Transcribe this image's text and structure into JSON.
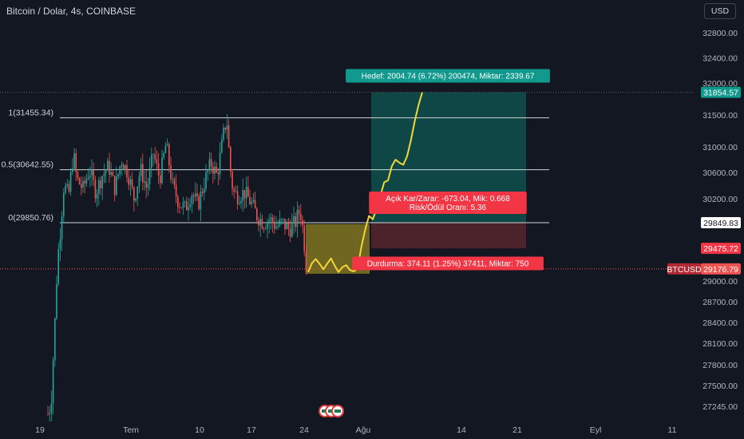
{
  "header": {
    "title": "Bitcoin / Dolar, 4s, COINBASE",
    "currency": "USD"
  },
  "colors": {
    "bg": "#131722",
    "up": "#26a69a",
    "down": "#ef5350",
    "profit_zone": "#0e5852",
    "loss_zone": "#53242c",
    "yellow_zone": "#736a22",
    "projection": "#f2d63a",
    "target_label": "#11998e",
    "risk_label": "#f23645"
  },
  "chart_data": {
    "type": "candlestick",
    "symbol": "BTCUSD",
    "ylim": [
      27150,
      33050
    ],
    "y_ticks": [
      32800,
      32400,
      32000,
      31500,
      31000,
      30600,
      30200,
      29000,
      28700,
      28400,
      28100,
      27800,
      27500,
      27245
    ],
    "y_tick_labels": [
      "32800.00",
      "32400.00",
      "32000.00",
      "31500.00",
      "31000.00",
      "30600.00",
      "30200.00",
      "29000.00",
      "28700.00",
      "28400.00",
      "28100.00",
      "27800.00",
      "27500.00",
      "27245.00"
    ],
    "x_ticks": [
      "19",
      "Tem",
      "10",
      "17",
      "24",
      "Ağu",
      "14",
      "21",
      "Eyl",
      "11"
    ],
    "price_badges": [
      {
        "value": "31854.57",
        "kind": "target"
      },
      {
        "value": "29849.83",
        "kind": "entry"
      },
      {
        "value": "29475.72",
        "kind": "stop"
      },
      {
        "value": "29176.79",
        "kind": "last"
      }
    ],
    "last_symbol_badge": "BTCUSD",
    "fib_levels": [
      {
        "label": "1(31455.34)",
        "price": 31455.34
      },
      {
        "label": "0.5(30642.55)",
        "price": 30642.55
      },
      {
        "label": "0(29850.76)",
        "price": 29850.76
      }
    ],
    "position": {
      "entry": 29849.83,
      "target": 31854.57,
      "stop": 29475.72,
      "target_label": "Hedef: 2004.74 (6.72%) 200474, Miktar: 2339.67",
      "pnl_line1": "Açık Kar/Zarar: -673.04, Mik: 0.668",
      "pnl_line2": "Risk/Ödül Oranı: 5.36",
      "stop_label": "Durdurma: 374.11 (1.25%) 37411, Miktar: 750"
    },
    "zone_box": {
      "low": 29105,
      "high": 29830
    },
    "projection_path": [
      29130,
      29260,
      29320,
      29250,
      29170,
      29250,
      29330,
      29220,
      29130,
      29200,
      29230,
      29160,
      29140,
      29180,
      29500,
      29750,
      29950,
      29900,
      30050,
      30250,
      30450,
      30480,
      30700,
      30800,
      30750,
      30720,
      30850,
      31100,
      31400,
      31650,
      31854.57
    ],
    "candles_summary": "approx. 4h candles from mid-June to late-July, rally from ~27200 to ~31455 then range 29800–31000",
    "grid": false
  }
}
